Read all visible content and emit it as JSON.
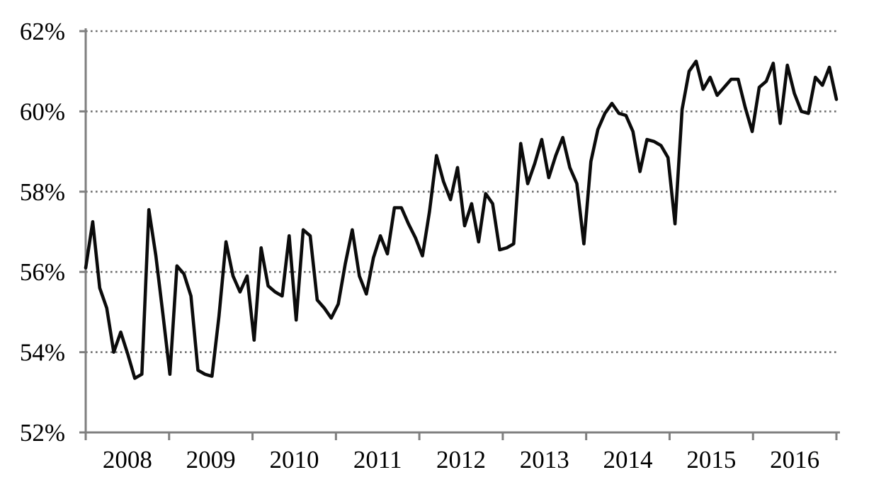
{
  "chart_data": {
    "type": "line",
    "title": "",
    "xlabel": "",
    "ylabel": "",
    "frequency": "monthly",
    "x_range": [
      "2008-01",
      "2016-12"
    ],
    "x_tick_labels": [
      "2008",
      "2009",
      "2010",
      "2011",
      "2012",
      "2013",
      "2014",
      "2015",
      "2016"
    ],
    "y_tick_labels": [
      "52%",
      "54%",
      "56%",
      "58%",
      "60%",
      "62%"
    ],
    "y_tick_values": [
      52,
      54,
      56,
      58,
      60,
      62
    ],
    "ylim": [
      52,
      62
    ],
    "grid": "horizontal-dotted",
    "legend_position": "none",
    "colors": {
      "line": "#0b0b0b",
      "axis": "#7f7f7f",
      "grid_dots": "#6e6e6e",
      "labels": "#000000",
      "background": "#ffffff"
    },
    "series": [
      {
        "name": "percent-rate-monthly",
        "color": "#0b0b0b",
        "values_by_year": [
          {
            "year": "2008",
            "values": [
              56.1,
              57.25,
              55.6,
              55.1,
              54.0,
              54.5,
              53.95,
              53.35,
              53.45,
              57.55,
              56.4,
              54.95
            ]
          },
          {
            "year": "2009",
            "values": [
              53.45,
              56.15,
              55.95,
              55.4,
              53.55,
              53.45,
              53.4,
              54.9,
              56.75,
              55.9,
              55.5,
              55.9
            ]
          },
          {
            "year": "2010",
            "values": [
              54.3,
              56.6,
              55.65,
              55.5,
              55.4,
              56.9,
              54.8,
              57.05,
              56.9,
              55.3,
              55.1,
              54.85
            ]
          },
          {
            "year": "2011",
            "values": [
              55.2,
              56.2,
              57.05,
              55.9,
              55.45,
              56.35,
              56.9,
              56.45,
              57.6,
              57.6,
              57.2,
              56.85
            ]
          },
          {
            "year": "2012",
            "values": [
              56.4,
              57.5,
              58.9,
              58.25,
              57.8,
              58.6,
              57.15,
              57.7,
              56.75,
              57.95,
              57.7,
              56.55
            ]
          },
          {
            "year": "2013",
            "values": [
              56.6,
              56.7,
              59.2,
              58.2,
              58.7,
              59.3,
              58.35,
              58.9,
              59.35,
              58.6,
              58.2,
              56.7
            ]
          },
          {
            "year": "2014",
            "values": [
              58.75,
              59.55,
              59.95,
              60.2,
              59.95,
              59.9,
              59.5,
              58.5,
              59.3,
              59.25,
              59.15,
              58.85
            ]
          },
          {
            "year": "2015",
            "values": [
              57.2,
              60.05,
              61.0,
              61.25,
              60.55,
              60.85,
              60.4,
              60.6,
              60.8,
              60.8,
              60.1,
              59.5
            ]
          },
          {
            "year": "2016",
            "values": [
              60.6,
              60.75,
              61.2,
              59.7,
              61.15,
              60.45,
              60.0,
              59.95,
              60.85,
              60.65,
              61.1,
              60.3
            ]
          }
        ]
      }
    ]
  }
}
